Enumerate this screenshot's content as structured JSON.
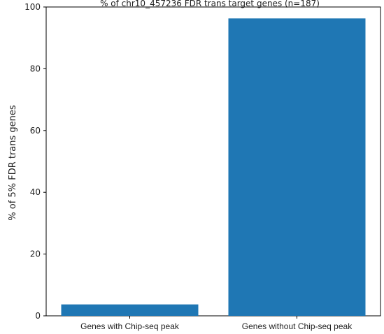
{
  "chart_data": {
    "type": "bar",
    "title": "% of chr10_457236 FDR trans target genes (n=187)",
    "categories": [
      "Genes with Chip-seq peak",
      "Genes without Chip-seq peak"
    ],
    "values": [
      3.7,
      96.3
    ],
    "xlabel": "",
    "ylabel": "% of 5% FDR trans genes",
    "ylim": [
      0,
      100
    ],
    "yticks": [
      0,
      20,
      40,
      60,
      80,
      100
    ],
    "bar_color": "#1f77b4",
    "grid": false
  }
}
